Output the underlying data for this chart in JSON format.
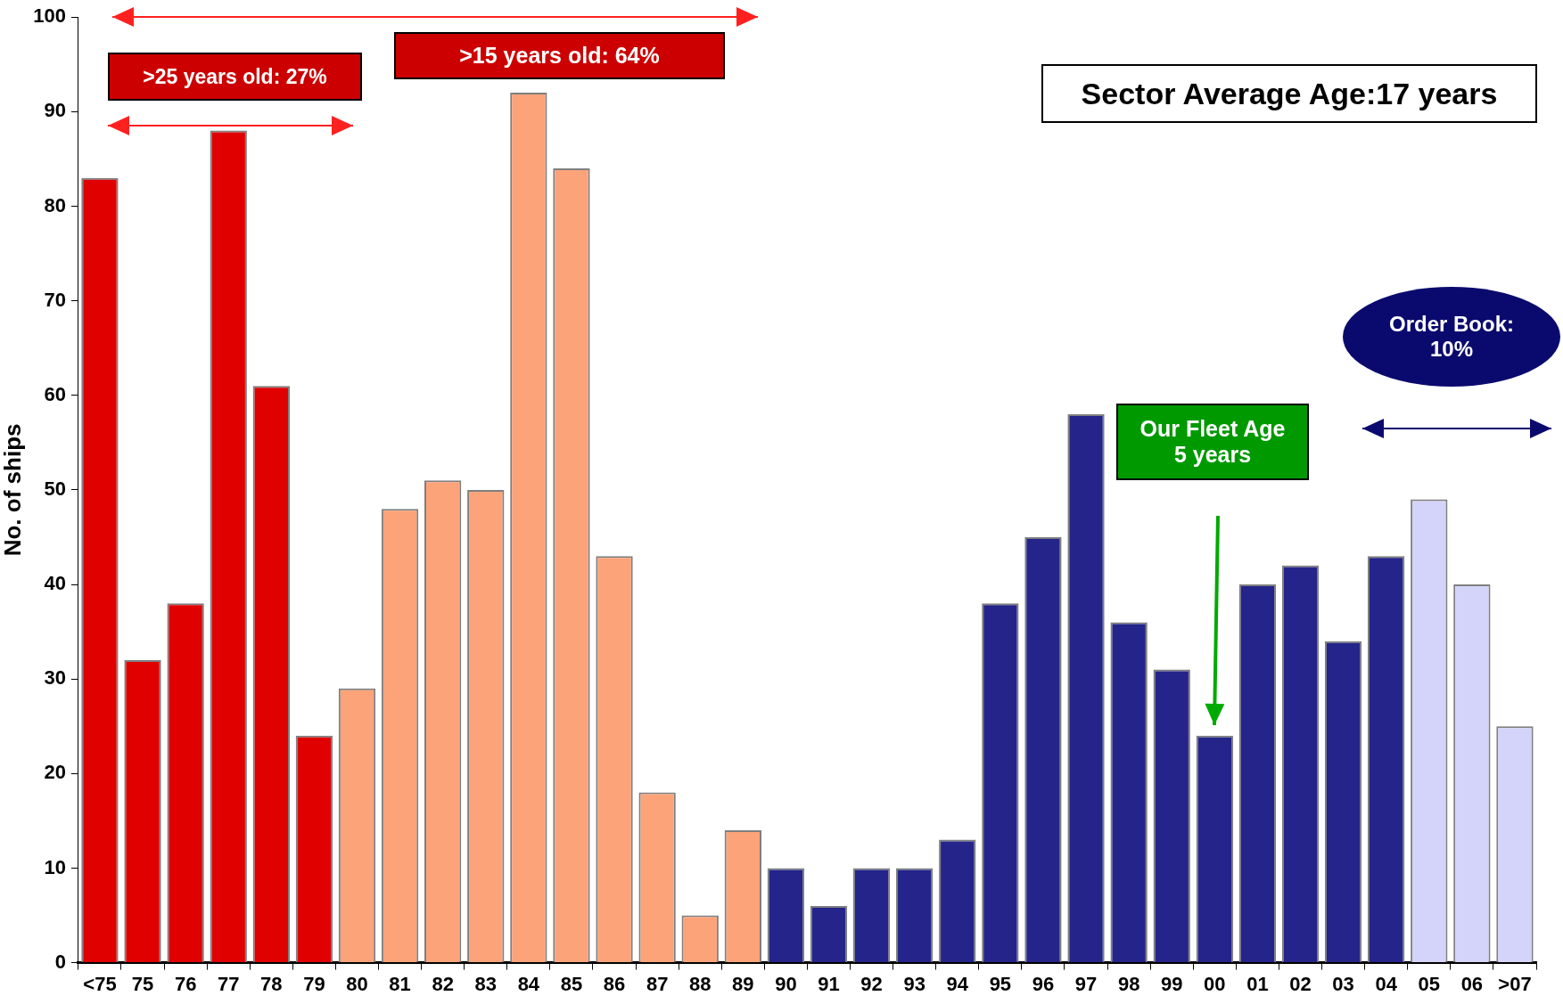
{
  "chart_data": {
    "type": "bar",
    "ylabel": "No. of ships",
    "categories": [
      "<75",
      "75",
      "76",
      "77",
      "78",
      "79",
      "80",
      "81",
      "82",
      "83",
      "84",
      "85",
      "86",
      "87",
      "88",
      "89",
      "90",
      "91",
      "92",
      "93",
      "94",
      "95",
      "96",
      "97",
      "98",
      "99",
      "00",
      "01",
      "02",
      "03",
      "04",
      "05",
      "06",
      ">07"
    ],
    "values": [
      83,
      32,
      38,
      88,
      61,
      24,
      29,
      48,
      51,
      50,
      92,
      84,
      43,
      18,
      5,
      14,
      10,
      6,
      10,
      10,
      13,
      38,
      45,
      58,
      36,
      31,
      24,
      40,
      42,
      34,
      43,
      49,
      40,
      25
    ],
    "colors": [
      "#e00000",
      "#e00000",
      "#e00000",
      "#e00000",
      "#e00000",
      "#e00000",
      "#fca37a",
      "#fca37a",
      "#fca37a",
      "#fca37a",
      "#fca37a",
      "#fca37a",
      "#fca37a",
      "#fca37a",
      "#fca37a",
      "#fca37a",
      "#24248a",
      "#24248a",
      "#24248a",
      "#24248a",
      "#24248a",
      "#24248a",
      "#24248a",
      "#24248a",
      "#24248a",
      "#24248a",
      "#24248a",
      "#24248a",
      "#24248a",
      "#24248a",
      "#24248a",
      "#d4d4fa",
      "#d4d4fa",
      "#d4d4fa"
    ],
    "ylim": [
      0,
      100
    ],
    "yticks": [
      0,
      10,
      20,
      30,
      40,
      50,
      60,
      70,
      80,
      90,
      100
    ],
    "grid": false,
    "annotations": [
      ">25 years old: 27%",
      ">15 years old: 64%",
      "Sector Average Age:17 years",
      "Order Book:\n10%",
      "Our Fleet Age\n5 years"
    ]
  }
}
